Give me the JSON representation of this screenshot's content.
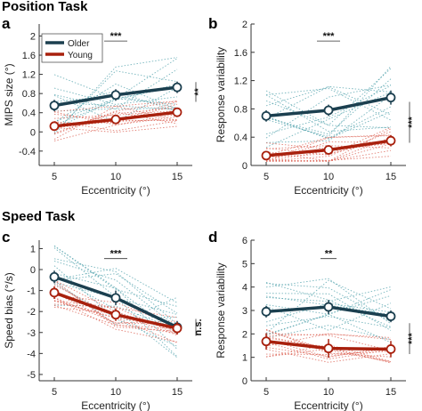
{
  "sections": [
    "Position Task",
    "Speed Task"
  ],
  "legend": [
    {
      "label": "Older",
      "color": "#1b3f4f"
    },
    {
      "label": "Young",
      "color": "#a8200d"
    }
  ],
  "colors": {
    "older": "#1b3f4f",
    "young": "#a8200d",
    "older_individual": "#4a9da8",
    "young_individual": "#d9584a"
  },
  "chart_data": [
    {
      "panel": "a",
      "type": "line",
      "xlabel": "Eccentricity (°)",
      "ylabel": "MIPS size (°)",
      "x": [
        5,
        10,
        15
      ],
      "xticks": [
        "5",
        "10",
        "15"
      ],
      "ylim": [
        -0.7,
        2.25
      ],
      "yticks": [
        -0.4,
        0,
        0.4,
        0.8,
        1.2,
        1.6,
        2
      ],
      "ytick_labels": [
        "-0.4",
        "0",
        "0.4",
        "0.8",
        "1.2",
        "1.6",
        "2"
      ],
      "series": [
        {
          "name": "Older",
          "values": [
            0.55,
            0.77,
            0.93
          ],
          "err": [
            0.12,
            0.12,
            0.12
          ]
        },
        {
          "name": "Young",
          "values": [
            0.12,
            0.26,
            0.41
          ],
          "err": [
            0.07,
            0.07,
            0.09
          ]
        }
      ],
      "annotations": [
        {
          "text": "***",
          "where": "top at 10"
        },
        {
          "text": "**",
          "where": "right"
        }
      ]
    },
    {
      "panel": "b",
      "type": "line",
      "xlabel": "Eccentricity (°)",
      "ylabel": "Response variability",
      "x": [
        5,
        10,
        15
      ],
      "xticks": [
        "5",
        "10",
        "15"
      ],
      "ylim": [
        0,
        2
      ],
      "yticks": [
        0,
        0.4,
        0.8,
        1.2,
        1.6,
        2
      ],
      "ytick_labels": [
        "0",
        "0.4",
        "0.8",
        "1.2",
        "1.6",
        "2"
      ],
      "series": [
        {
          "name": "Older",
          "values": [
            0.7,
            0.78,
            0.96
          ],
          "err": [
            0.08,
            0.08,
            0.1
          ]
        },
        {
          "name": "Young",
          "values": [
            0.14,
            0.22,
            0.35
          ],
          "err": [
            0.04,
            0.05,
            0.08
          ]
        }
      ],
      "annotations": [
        {
          "text": "***",
          "where": "top at 10"
        },
        {
          "text": "***",
          "where": "right"
        }
      ]
    },
    {
      "panel": "c",
      "type": "line",
      "xlabel": "Eccentricity (°)",
      "ylabel": "Speed bias (°/s)",
      "x": [
        5,
        10,
        15
      ],
      "xticks": [
        "5",
        "10",
        "15"
      ],
      "ylim": [
        -5.3,
        1.4
      ],
      "yticks": [
        -5,
        -4,
        -3,
        -2,
        -1,
        0,
        1
      ],
      "ytick_labels": [
        "-5",
        "-4",
        "-3",
        "-2",
        "-1",
        "0",
        "1"
      ],
      "series": [
        {
          "name": "Older",
          "values": [
            -0.35,
            -1.35,
            -2.75
          ],
          "err": [
            0.3,
            0.35,
            0.3
          ]
        },
        {
          "name": "Young",
          "values": [
            -1.1,
            -2.15,
            -2.8
          ],
          "err": [
            0.3,
            0.3,
            0.3
          ]
        }
      ],
      "annotations": [
        {
          "text": "***",
          "where": "top at 10"
        },
        {
          "text": "n.s.",
          "where": "right"
        }
      ]
    },
    {
      "panel": "d",
      "type": "line",
      "xlabel": "Eccentricity (°)",
      "ylabel": "Response variability",
      "x": [
        5,
        10,
        15
      ],
      "xticks": [
        "5",
        "10",
        "15"
      ],
      "ylim": [
        0,
        6
      ],
      "yticks": [
        0,
        1,
        2,
        3,
        4,
        5,
        6
      ],
      "ytick_labels": [
        "0",
        "1",
        "2",
        "3",
        "4",
        "5",
        "6"
      ],
      "series": [
        {
          "name": "Older",
          "values": [
            2.95,
            3.15,
            2.75
          ],
          "err": [
            0.25,
            0.3,
            0.25
          ]
        },
        {
          "name": "Young",
          "values": [
            1.68,
            1.38,
            1.35
          ],
          "err": [
            0.35,
            0.4,
            0.35
          ]
        }
      ],
      "annotations": [
        {
          "text": "**",
          "where": "top at 10"
        },
        {
          "text": "***",
          "where": "right"
        }
      ]
    }
  ]
}
